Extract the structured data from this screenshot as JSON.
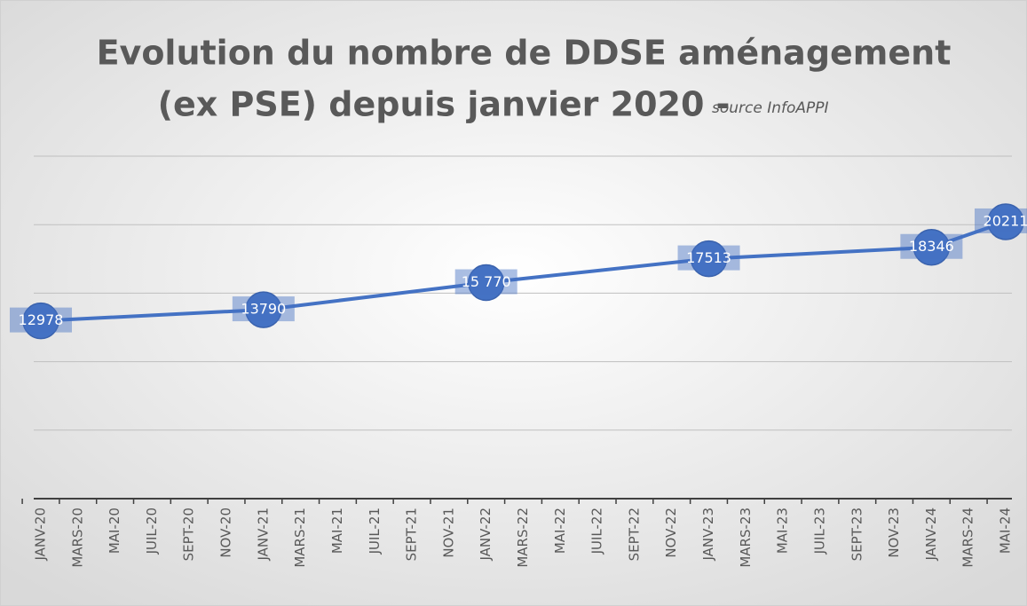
{
  "chart_data": {
    "type": "line",
    "title_lines": [
      "Evolution du nombre de DDSE aménagement",
      "(ex PSE) depuis janvier 2020 -"
    ],
    "subtitle": "source InfoAPPI",
    "categories": [
      "JANV-20",
      "MARS-20",
      "MAI-20",
      "JUIL-20",
      "SEPT-20",
      "NOV-20",
      "JANV-21",
      "MARS-21",
      "MAI-21",
      "JUIL-21",
      "SEPT-21",
      "NOV-21",
      "JANV-22",
      "MARS-22",
      "MAI-22",
      "JUIL-22",
      "SEPT-22",
      "NOV-22",
      "JANV-23",
      "MARS-23",
      "MAI-23",
      "JUIL-23",
      "SEPT-23",
      "NOV-23",
      "JANV-24",
      "MARS-24",
      "MAI-24"
    ],
    "series": [
      {
        "name": "DDSE",
        "color": "#4472c4",
        "x": [
          "JANV-20",
          "JANV-21",
          "JANV-22",
          "JANV-23",
          "JANV-24",
          "MAI-24"
        ],
        "values": [
          12978,
          13790,
          15770,
          17513,
          18346,
          20211
        ],
        "value_labels": [
          "12978",
          "13790",
          "15 770",
          "17513",
          "18346",
          "20211"
        ]
      }
    ],
    "ylim": [
      0,
      25000
    ],
    "yticks": [
      0,
      5000,
      10000,
      15000,
      20000,
      25000
    ],
    "y_tick_labels": false,
    "grid": true
  }
}
